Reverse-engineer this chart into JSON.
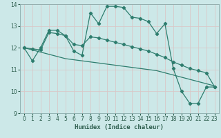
{
  "xlabel": "Humidex (Indice chaleur)",
  "background_color": "#cce8e8",
  "grid_color": "#b0d0d0",
  "line_color": "#2e7d6e",
  "xlim": [
    -0.5,
    23.5
  ],
  "ylim": [
    9,
    14
  ],
  "yticks": [
    9,
    10,
    11,
    12,
    13,
    14
  ],
  "xticks": [
    0,
    1,
    2,
    3,
    4,
    5,
    6,
    7,
    8,
    9,
    10,
    11,
    12,
    13,
    14,
    15,
    16,
    17,
    18,
    19,
    20,
    21,
    22,
    23
  ],
  "curve1_x": [
    0,
    1,
    2,
    3,
    4,
    5,
    6,
    7,
    8,
    9,
    10,
    11,
    12,
    13,
    14,
    15,
    16,
    17,
    18,
    19,
    20,
    21,
    22,
    23
  ],
  "curve1_y": [
    12.0,
    11.4,
    12.0,
    12.8,
    12.8,
    12.55,
    11.85,
    11.65,
    13.6,
    13.1,
    13.9,
    13.9,
    13.85,
    13.4,
    13.35,
    13.2,
    12.65,
    13.1,
    11.05,
    10.0,
    9.45,
    9.45,
    10.2,
    10.2
  ],
  "curve2_x": [
    0,
    1,
    2,
    3,
    4,
    5,
    6,
    7,
    8,
    9,
    10,
    11,
    12,
    13,
    14,
    15,
    16,
    17,
    18,
    19,
    20,
    21,
    22,
    23
  ],
  "curve2_y": [
    12.0,
    11.9,
    11.8,
    11.7,
    11.6,
    11.5,
    11.45,
    11.4,
    11.35,
    11.3,
    11.25,
    11.2,
    11.15,
    11.1,
    11.05,
    11.0,
    10.95,
    10.85,
    10.75,
    10.65,
    10.55,
    10.45,
    10.35,
    10.25
  ],
  "curve3_x": [
    0,
    1,
    2,
    3,
    4,
    5,
    6,
    7,
    8,
    9,
    10,
    11,
    12,
    13,
    14,
    15,
    16,
    17,
    18,
    19,
    20,
    21,
    22,
    23
  ],
  "curve3_y": [
    12.0,
    11.95,
    11.9,
    12.7,
    12.65,
    12.55,
    12.15,
    12.1,
    12.5,
    12.45,
    12.35,
    12.25,
    12.15,
    12.05,
    11.95,
    11.85,
    11.7,
    11.55,
    11.35,
    11.2,
    11.05,
    10.95,
    10.85,
    10.2
  ]
}
